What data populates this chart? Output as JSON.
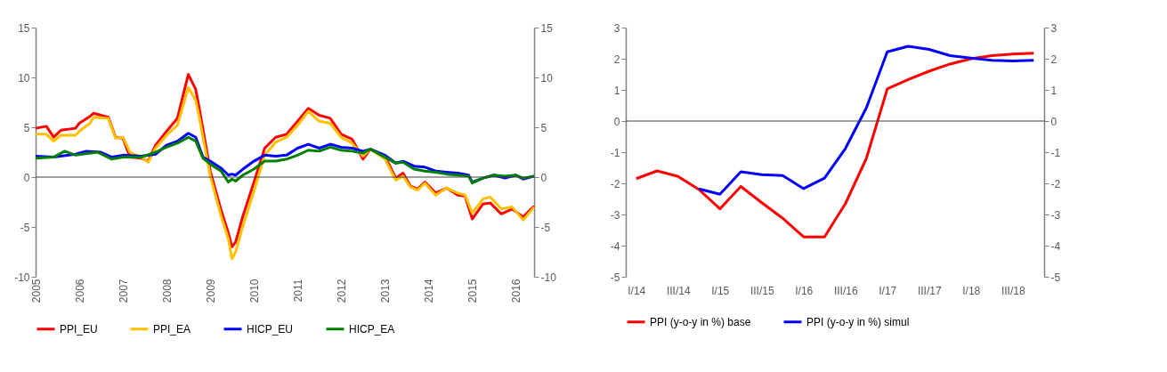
{
  "chart_data": [
    {
      "type": "line",
      "x": [
        "2005-01",
        "2005-04",
        "2005-06",
        "2005-08",
        "2005-12",
        "2006-01",
        "2006-04",
        "2006-05",
        "2006-09",
        "2006-11",
        "2007-01",
        "2007-03",
        "2007-06",
        "2007-08",
        "2007-10",
        "2008-01",
        "2008-04",
        "2008-07",
        "2008-09",
        "2008-10",
        "2009-01",
        "2009-04",
        "2009-06",
        "2009-07",
        "2009-08",
        "2009-10",
        "2010-01",
        "2010-04",
        "2010-07",
        "2010-10",
        "2011-01",
        "2011-04",
        "2011-07",
        "2011-10",
        "2012-01",
        "2012-04",
        "2012-07",
        "2012-09",
        "2013-01",
        "2013-04",
        "2013-06",
        "2013-08",
        "2013-10",
        "2013-12",
        "2014-03",
        "2014-06",
        "2014-09",
        "2014-11",
        "2015-01",
        "2015-04",
        "2015-06",
        "2015-09",
        "2015-12",
        "2016-03",
        "2016-06"
      ],
      "series": [
        {
          "name": "PPI_EU",
          "color": "#ff0000",
          "values": [
            4.9,
            5.1,
            4.0,
            4.7,
            4.9,
            5.4,
            6.1,
            6.4,
            6.0,
            4.0,
            3.9,
            2.0,
            1.9,
            1.6,
            3.2,
            4.6,
            5.9,
            10.3,
            8.8,
            6.9,
            0.6,
            -3.3,
            -5.6,
            -7.0,
            -6.5,
            -3.9,
            -0.5,
            2.9,
            4.0,
            4.3,
            5.6,
            6.9,
            6.2,
            5.9,
            4.3,
            3.8,
            1.8,
            2.8,
            2.1,
            -0.1,
            0.4,
            -0.9,
            -1.2,
            -0.5,
            -1.6,
            -1.1,
            -1.8,
            -1.9,
            -4.2,
            -2.7,
            -2.6,
            -3.7,
            -3.2,
            -4.0,
            -2.9
          ]
        },
        {
          "name": "PPI_EA",
          "color": "#ffc000",
          "values": [
            4.3,
            4.3,
            3.6,
            4.2,
            4.2,
            4.6,
            5.4,
            6.0,
            5.9,
            3.9,
            4.0,
            2.5,
            2.0,
            1.5,
            2.9,
            4.2,
            5.2,
            9.0,
            7.7,
            6.0,
            0.1,
            -3.9,
            -6.2,
            -8.2,
            -7.5,
            -4.9,
            -1.4,
            2.2,
            3.5,
            4.0,
            5.2,
            6.6,
            5.6,
            5.4,
            4.0,
            3.4,
            2.1,
            2.8,
            1.8,
            -0.3,
            0.1,
            -1.0,
            -1.3,
            -0.6,
            -1.8,
            -1.1,
            -1.6,
            -1.8,
            -3.6,
            -2.2,
            -2.0,
            -3.2,
            -3.0,
            -4.3,
            -3.0
          ]
        },
        {
          "name": "HICP_EU",
          "color": "#0000ff",
          "x": [
            "2005-01",
            "2005-06",
            "2005-12",
            "2006-03",
            "2006-07",
            "2006-10",
            "2007-01",
            "2007-06",
            "2007-10",
            "2008-01",
            "2008-04",
            "2008-07",
            "2008-09",
            "2008-11",
            "2009-01",
            "2009-04",
            "2009-06",
            "2009-07",
            "2009-08",
            "2009-10",
            "2010-01",
            "2010-04",
            "2010-07",
            "2010-10",
            "2011-01",
            "2011-04",
            "2011-07",
            "2011-10",
            "2012-01",
            "2012-04",
            "2012-07",
            "2012-09",
            "2013-01",
            "2013-04",
            "2013-06",
            "2013-09",
            "2013-12",
            "2014-03",
            "2014-06",
            "2014-09",
            "2014-12",
            "2015-01",
            "2015-04",
            "2015-07",
            "2015-10",
            "2016-01",
            "2016-03",
            "2016-06"
          ],
          "values": [
            2.1,
            2.0,
            2.3,
            2.6,
            2.5,
            2.0,
            2.2,
            2.1,
            2.3,
            3.2,
            3.6,
            4.4,
            4.0,
            2.0,
            1.6,
            0.9,
            0.2,
            0.3,
            0.2,
            0.8,
            1.6,
            2.2,
            2.1,
            2.2,
            2.9,
            3.3,
            2.9,
            3.3,
            3.0,
            2.9,
            2.6,
            2.8,
            2.2,
            1.4,
            1.6,
            1.1,
            1.0,
            0.6,
            0.5,
            0.4,
            0.2,
            -0.5,
            -0.1,
            0.2,
            -0.1,
            0.2,
            -0.2,
            0.1
          ]
        },
        {
          "name": "HICP_EA",
          "color": "#008000",
          "x": [
            "2005-01",
            "2005-06",
            "2005-09",
            "2005-12",
            "2006-06",
            "2006-10",
            "2007-01",
            "2007-06",
            "2007-10",
            "2008-01",
            "2008-04",
            "2008-07",
            "2008-09",
            "2008-11",
            "2009-01",
            "2009-04",
            "2009-06",
            "2009-07",
            "2009-08",
            "2009-10",
            "2010-01",
            "2010-04",
            "2010-07",
            "2010-10",
            "2011-01",
            "2011-04",
            "2011-07",
            "2011-10",
            "2012-01",
            "2012-04",
            "2012-07",
            "2012-09",
            "2013-01",
            "2013-04",
            "2013-06",
            "2013-09",
            "2013-12",
            "2014-03",
            "2014-06",
            "2014-09",
            "2014-12",
            "2015-01",
            "2015-04",
            "2015-07",
            "2015-10",
            "2016-01",
            "2016-03",
            "2016-06"
          ],
          "values": [
            1.9,
            2.0,
            2.6,
            2.2,
            2.5,
            1.8,
            2.0,
            2.0,
            2.5,
            3.0,
            3.4,
            4.0,
            3.6,
            1.9,
            1.3,
            0.6,
            -0.5,
            -0.2,
            -0.4,
            0.2,
            0.8,
            1.6,
            1.6,
            1.8,
            2.2,
            2.7,
            2.6,
            3.0,
            2.7,
            2.6,
            2.4,
            2.8,
            2.0,
            1.4,
            1.5,
            0.8,
            0.6,
            0.5,
            0.3,
            0.2,
            0.1,
            -0.6,
            -0.1,
            0.2,
            0.1,
            0.2,
            -0.1,
            0.1
          ]
        }
      ],
      "xlim": [
        "2005-01",
        "2016-06"
      ],
      "xticks": [
        "2005",
        "2006",
        "2007",
        "2008",
        "2009",
        "2010",
        "2011",
        "2012",
        "2013",
        "2014",
        "2015",
        "2016"
      ],
      "ylim": [
        -10,
        15
      ],
      "yticks": [
        -10,
        -5,
        0,
        5,
        10,
        15
      ],
      "y2lim": [
        -10,
        15
      ],
      "y2ticks": [
        -10,
        -5,
        0,
        5,
        10,
        15
      ],
      "ref_lines": [
        {
          "axis": "y",
          "value": 0,
          "color": "#404040"
        }
      ],
      "grid": false,
      "legend": "bottom",
      "line_style": "solid",
      "marker": "none"
    },
    {
      "type": "line",
      "categories": [
        "I/14",
        null,
        "III/14",
        null,
        "I/15",
        null,
        "III/15",
        null,
        "I/16",
        null,
        "III/16",
        null,
        "I/17",
        null,
        "III/17",
        null,
        "I/18",
        null,
        "III/18",
        null
      ],
      "series": [
        {
          "name": "PPI (y-o-y in %) base",
          "color": "#ff0000",
          "values": [
            -1.85,
            -1.6,
            -1.78,
            -2.2,
            -2.82,
            -2.1,
            -2.62,
            -3.12,
            -3.72,
            -3.72,
            -2.65,
            -1.2,
            1.03,
            1.33,
            1.6,
            1.83,
            2.0,
            2.1,
            2.15,
            2.18
          ]
        },
        {
          "name": "PPI (y-o-y in %) simul",
          "color": "#0000ff",
          "values": [
            null,
            null,
            null,
            -2.18,
            -2.35,
            -1.63,
            -1.72,
            -1.75,
            -2.17,
            -1.83,
            -0.88,
            0.42,
            2.22,
            2.4,
            2.3,
            2.1,
            2.02,
            1.95,
            1.93,
            1.95
          ]
        }
      ],
      "ylim": [
        -5,
        3
      ],
      "yticks": [
        -5,
        -4,
        -3,
        -2,
        -1,
        0,
        1,
        2,
        3
      ],
      "y2lim": [
        -5,
        3
      ],
      "y2ticks": [
        -5,
        -4,
        -3,
        -2,
        -1,
        0,
        1,
        2,
        3
      ],
      "ref_lines": [
        {
          "axis": "y",
          "value": 0,
          "color": "#404040"
        }
      ],
      "grid": false,
      "legend": "bottom",
      "line_style": "solid",
      "marker": "none"
    }
  ]
}
